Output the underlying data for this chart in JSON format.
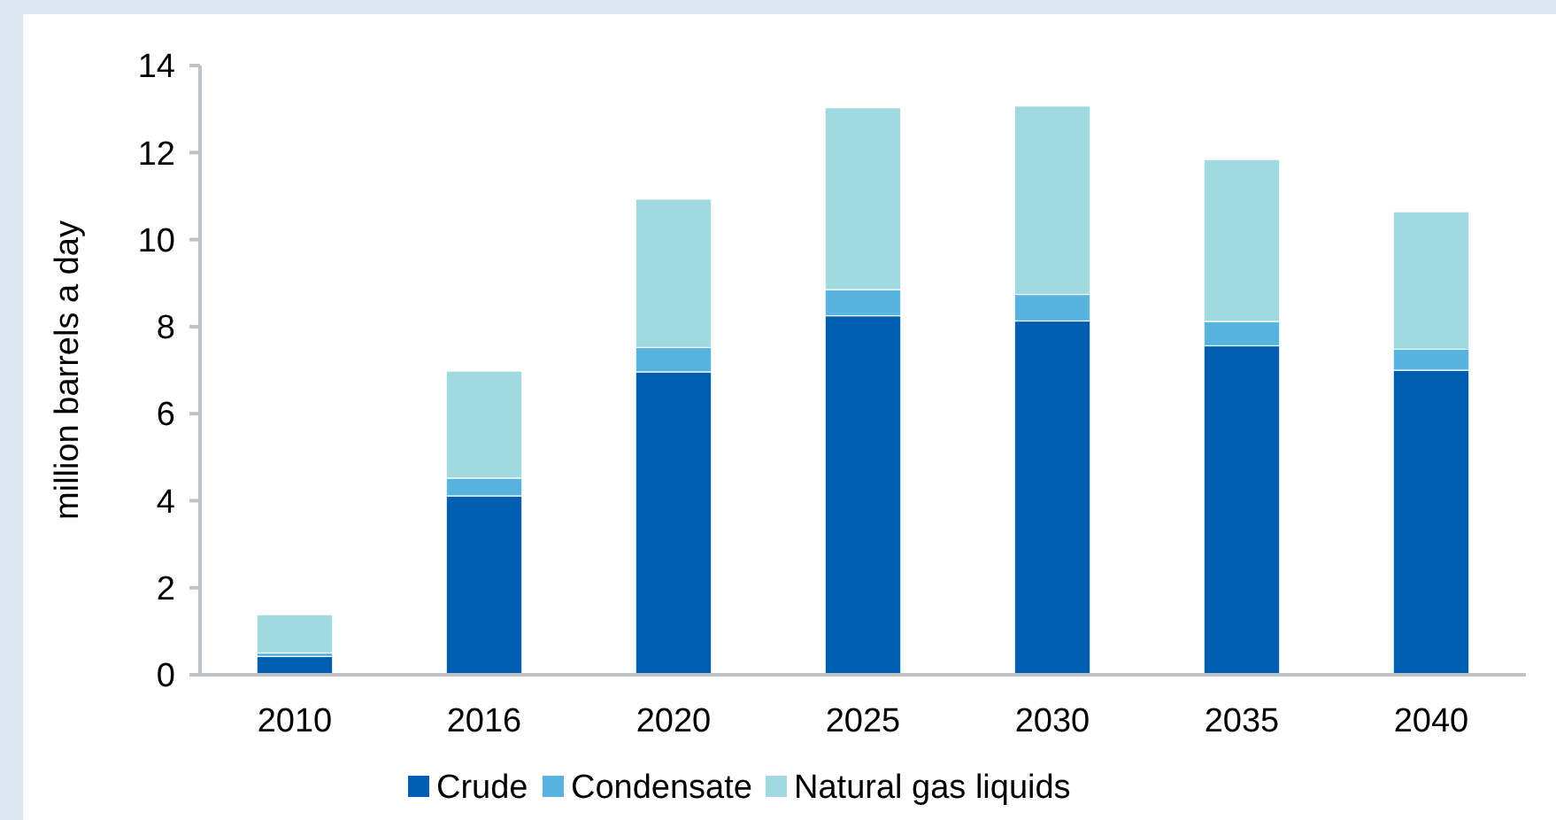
{
  "chart_data": {
    "type": "bar",
    "stacked": true,
    "ylabel": "million barrels a day",
    "categories": [
      "2010",
      "2016",
      "2020",
      "2025",
      "2030",
      "2035",
      "2040"
    ],
    "series": [
      {
        "name": "Crude",
        "color": "#005eb0",
        "values": [
          0.42,
          4.11,
          6.96,
          8.25,
          8.13,
          7.56,
          7.0
        ]
      },
      {
        "name": "Condensate",
        "color": "#58b3de",
        "values": [
          0.08,
          0.41,
          0.56,
          0.6,
          0.61,
          0.56,
          0.48
        ]
      },
      {
        "name": "Natural gas liquids",
        "color": "#a0d9e0",
        "values": [
          0.88,
          2.46,
          3.41,
          4.18,
          4.33,
          3.72,
          3.16
        ]
      }
    ],
    "ylim": [
      0,
      14
    ],
    "yticks": [
      0,
      2,
      4,
      6,
      8,
      10,
      12,
      14
    ],
    "grid": false,
    "legend": "bottom"
  }
}
